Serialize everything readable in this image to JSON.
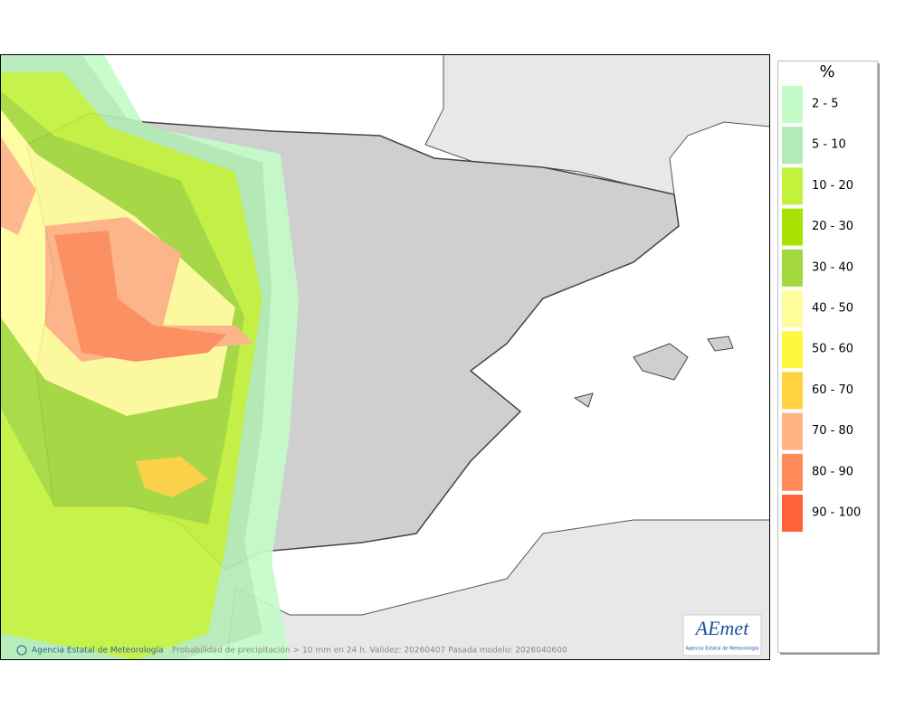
{
  "legend": {
    "unit": "%",
    "items": [
      {
        "label": "2 - 5",
        "color": "#c4fcc8"
      },
      {
        "label": "5 - 10",
        "color": "#b2ebb6"
      },
      {
        "label": "10 - 20",
        "color": "#c2f23c"
      },
      {
        "label": "20 - 30",
        "color": "#a9e303"
      },
      {
        "label": "30 - 40",
        "color": "#a2d83c"
      },
      {
        "label": "40 - 50",
        "color": "#fffc9c"
      },
      {
        "label": "50 - 60",
        "color": "#fff83e"
      },
      {
        "label": "60 - 70",
        "color": "#ffd23e"
      },
      {
        "label": "70 - 80",
        "color": "#ffb384"
      },
      {
        "label": "80 - 90",
        "color": "#ff8b5a"
      },
      {
        "label": "90 - 100",
        "color": "#ff6236"
      }
    ]
  },
  "footer": {
    "agency": "Agencia Estatal de Meteorología",
    "caption": "Probabilidad de precipitación > 10 mm en 24 h. Validez: 20260407 Pasada modelo: 2026040600"
  },
  "logo": {
    "text": "AEmet",
    "subtitle": "Agencia Estatal de Meteorología"
  }
}
